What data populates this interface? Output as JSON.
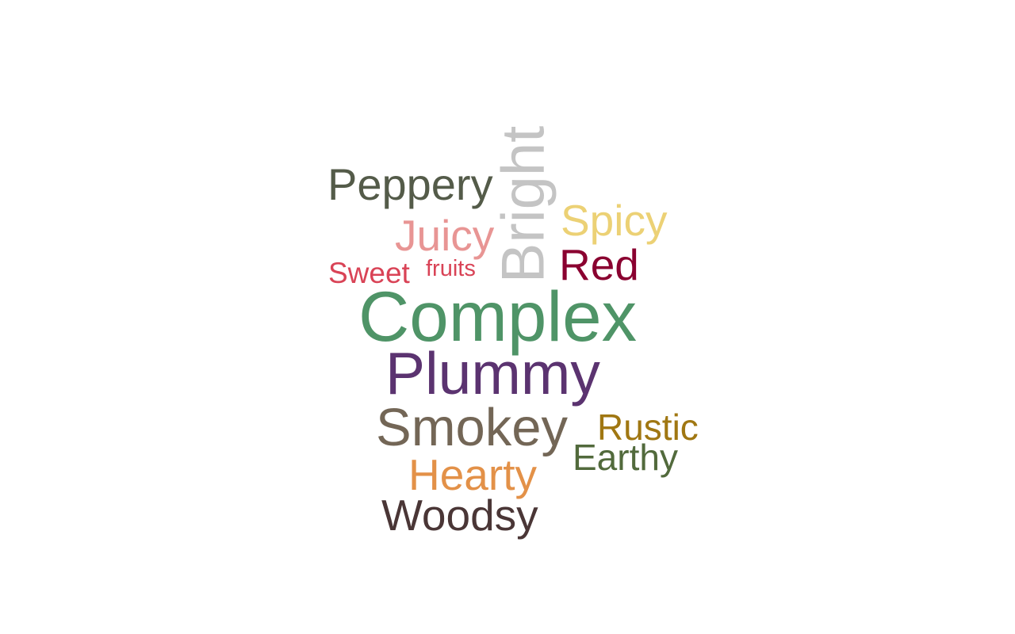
{
  "word_cloud": {
    "words": [
      {
        "key": "complex",
        "text": "Complex",
        "color": "#4f9467"
      },
      {
        "key": "plummy",
        "text": "Plummy",
        "color": "#5b3370"
      },
      {
        "key": "smokey",
        "text": "Smokey",
        "color": "#736656"
      },
      {
        "key": "bright",
        "text": "Bright",
        "color": "#c4c4c4"
      },
      {
        "key": "peppery",
        "text": "Peppery",
        "color": "#545b49"
      },
      {
        "key": "woodsy",
        "text": "Woodsy",
        "color": "#4a3636"
      },
      {
        "key": "hearty",
        "text": "Hearty",
        "color": "#e39148"
      },
      {
        "key": "juicy",
        "text": "Juicy",
        "color": "#e89594"
      },
      {
        "key": "spicy",
        "text": "Spicy",
        "color": "#ecd175"
      },
      {
        "key": "red",
        "text": "Red",
        "color": "#8a0030"
      },
      {
        "key": "rustic",
        "text": "Rustic",
        "color": "#a07712"
      },
      {
        "key": "earthy",
        "text": "Earthy",
        "color": "#526a3c"
      },
      {
        "key": "sweet",
        "text": "Sweet",
        "color": "#d94356"
      },
      {
        "key": "fruits",
        "text": "fruits",
        "color": "#d94356"
      }
    ]
  }
}
